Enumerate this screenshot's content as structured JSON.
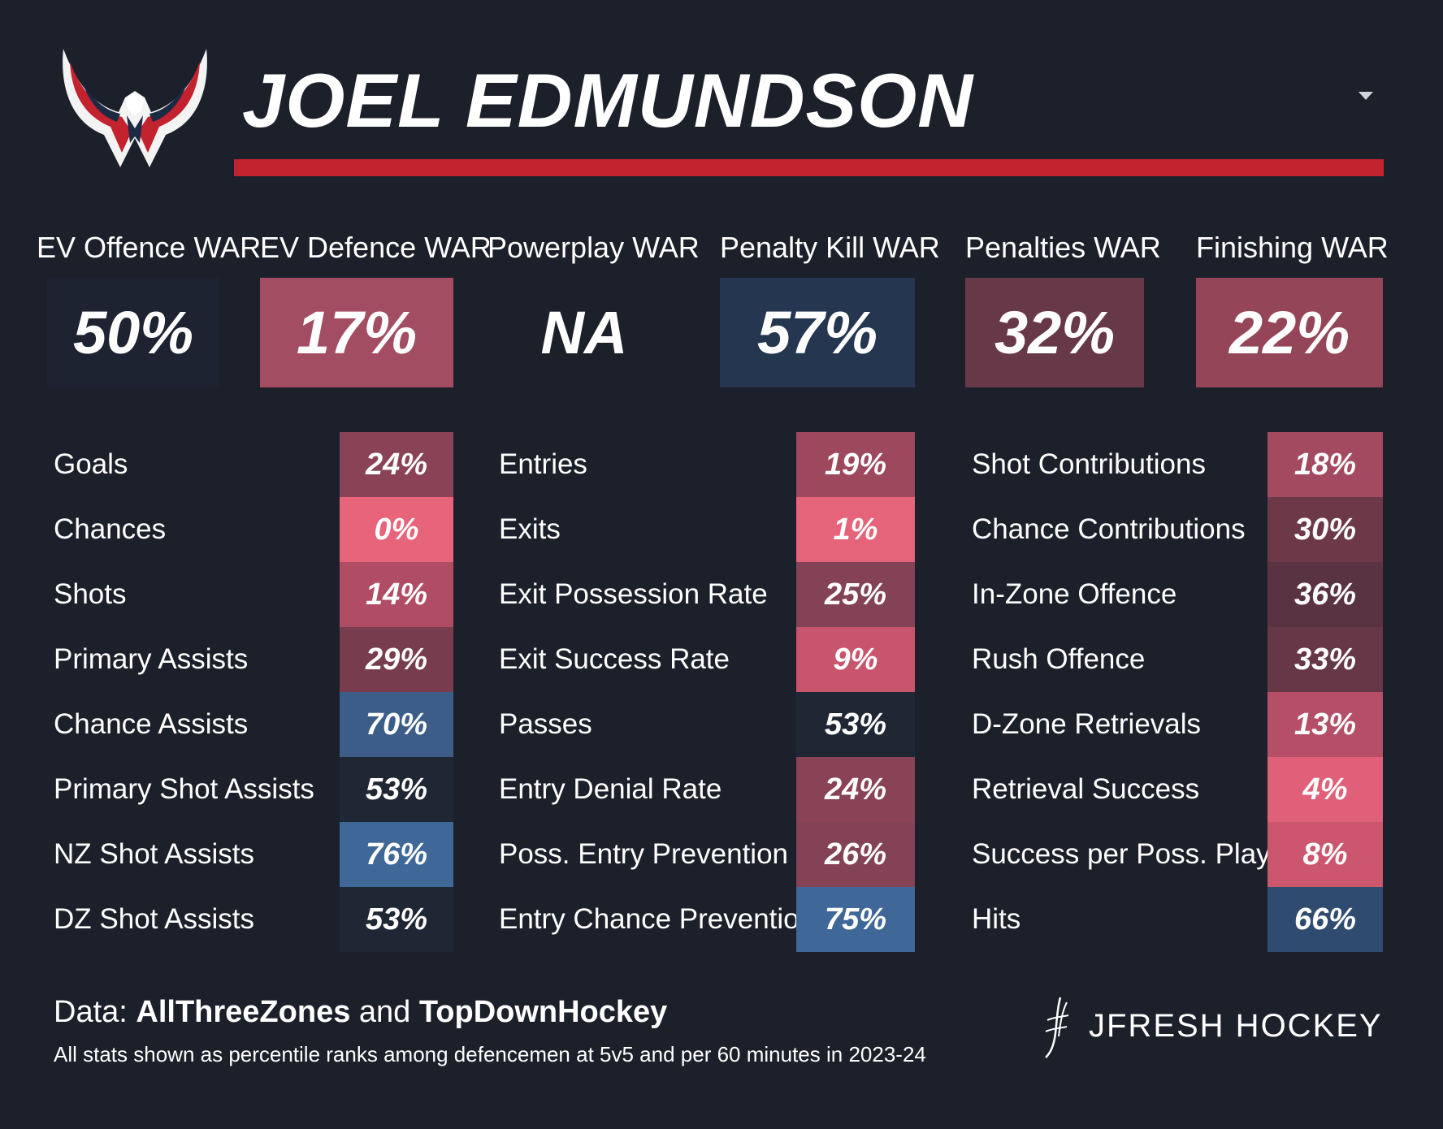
{
  "header": {
    "player_name": "JOEL EDMUNDSON",
    "logo_icon": "eagle-wings-logo-icon",
    "accent_color": "#c3222f"
  },
  "war": [
    {
      "label": "EV Offence WAR",
      "value": "50%",
      "color": "#1d2330"
    },
    {
      "label": "EV Defence WAR",
      "value": "17%",
      "color": "#a34d63"
    },
    {
      "label": "Powerplay WAR",
      "value": "NA",
      "color": "#1b202a"
    },
    {
      "label": "Penalty Kill WAR",
      "value": "57%",
      "color": "#243650"
    },
    {
      "label": "Penalties WAR",
      "value": "32%",
      "color": "#673848"
    },
    {
      "label": "Finishing WAR",
      "value": "22%",
      "color": "#944658"
    }
  ],
  "stats": {
    "col1": [
      {
        "label": "Goals",
        "value": "24%",
        "color": "#8a4356"
      },
      {
        "label": "Chances",
        "value": "0%",
        "color": "#e8647a"
      },
      {
        "label": "Shots",
        "value": "14%",
        "color": "#b04d64"
      },
      {
        "label": "Primary Assists",
        "value": "29%",
        "color": "#773d4e"
      },
      {
        "label": "Chance Assists",
        "value": "70%",
        "color": "#3b5d87"
      },
      {
        "label": "Primary Shot Assists",
        "value": "53%",
        "color": "#1f2735"
      },
      {
        "label": "NZ Shot Assists",
        "value": "76%",
        "color": "#3f6898"
      },
      {
        "label": "DZ Shot Assists",
        "value": "53%",
        "color": "#1f2735"
      }
    ],
    "col2": [
      {
        "label": "Entries",
        "value": "19%",
        "color": "#9d485d"
      },
      {
        "label": "Exits",
        "value": "1%",
        "color": "#e6647a"
      },
      {
        "label": "Exit Possession Rate",
        "value": "25%",
        "color": "#844257"
      },
      {
        "label": "Exit Success Rate",
        "value": "9%",
        "color": "#c9556c"
      },
      {
        "label": "Passes",
        "value": "53%",
        "color": "#1f2735"
      },
      {
        "label": "Entry Denial Rate",
        "value": "24%",
        "color": "#8a4356"
      },
      {
        "label": "Poss. Entry Prevention",
        "value": "26%",
        "color": "#834256"
      },
      {
        "label": "Entry Chance Prevention",
        "value": "75%",
        "color": "#3f6898"
      }
    ],
    "col3": [
      {
        "label": "Shot Contributions",
        "value": "18%",
        "color": "#a34a60"
      },
      {
        "label": "Chance Contributions",
        "value": "30%",
        "color": "#6d3949"
      },
      {
        "label": "In-Zone Offence",
        "value": "36%",
        "color": "#5a3343"
      },
      {
        "label": "Rush Offence",
        "value": "33%",
        "color": "#663747"
      },
      {
        "label": "D-Zone Retrievals",
        "value": "13%",
        "color": "#b44f67"
      },
      {
        "label": "Retrieval Success",
        "value": "4%",
        "color": "#e0607a"
      },
      {
        "label": "Success per Poss. Play",
        "value": "8%",
        "color": "#cc566e"
      },
      {
        "label": "Hits",
        "value": "66%",
        "color": "#2f4b70"
      }
    ]
  },
  "footer": {
    "data_prefix": "Data: ",
    "source_1": "AllThreeZones",
    "conjunction": " and ",
    "source_2": "TopDownHockey",
    "note": "All stats shown as percentile ranks among defencemen at 5v5 and per 60 minutes in 2023-24",
    "brand": "JFRESH HOCKEY",
    "brand_icon": "jfresh-signature-icon"
  }
}
